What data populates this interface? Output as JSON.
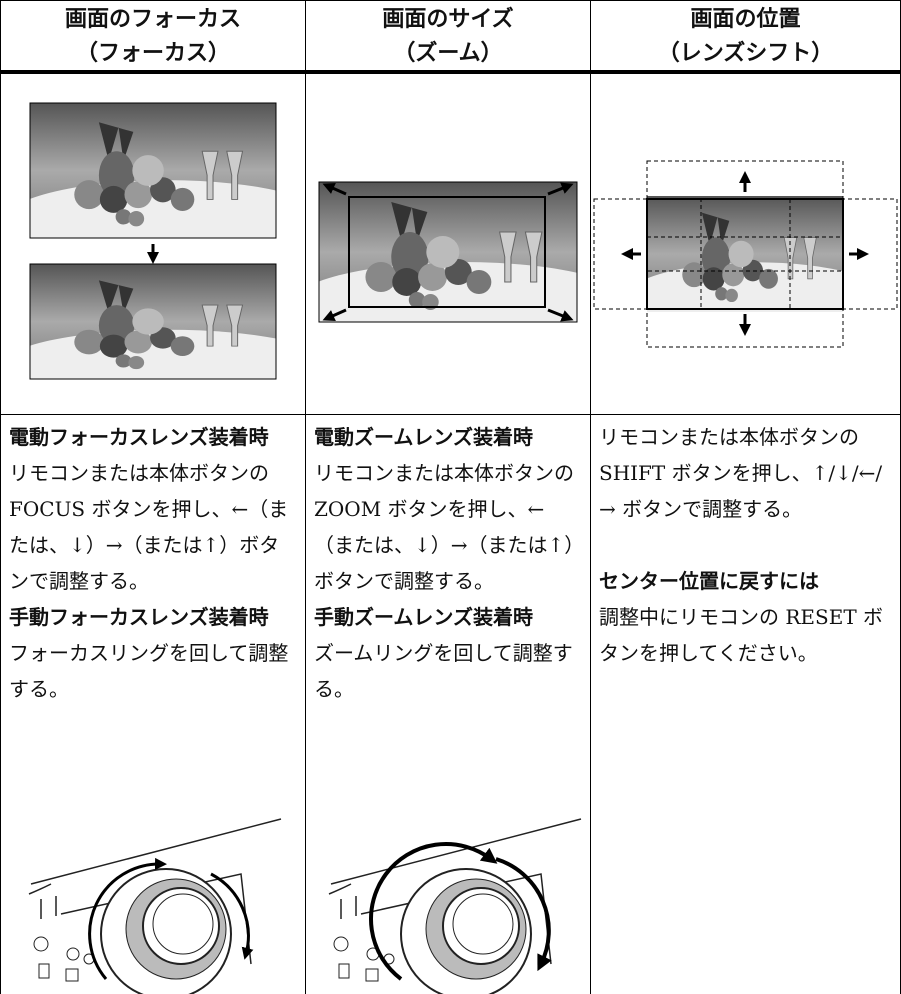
{
  "header": {
    "columns": [
      {
        "line1": "画面のフォーカス",
        "line2": "（フォーカス）"
      },
      {
        "line1": "画面のサイズ",
        "line2": "（ズーム）"
      },
      {
        "line1": "画面の位置",
        "line2": "（レンズシフト）"
      }
    ]
  },
  "body": {
    "columns": [
      {
        "paragraphs": [
          {
            "text": "電動フォーカスレンズ装着時",
            "bold": true
          },
          {
            "text": "リモコンまたは本体ボタンの FOCUS ボタンを押し、←（または、↓）→（または↑）ボタンで調整する。",
            "bold": false
          },
          {
            "text": "手動フォーカスレンズ装着時",
            "bold": true
          },
          {
            "text": "フォーカスリングを回して調整する。",
            "bold": false
          }
        ]
      },
      {
        "paragraphs": [
          {
            "text": "電動ズームレンズ装着時",
            "bold": true
          },
          {
            "text": "リモコンまたは本体ボタンの ZOOM ボタンを押し、←（または、↓）→（または↑）ボタンで調整する。",
            "bold": false
          },
          {
            "text": "手動ズームレンズ装着時",
            "bold": true
          },
          {
            "text": "ズームリングを回して調整する。",
            "bold": false
          }
        ]
      },
      {
        "paragraphs": [
          {
            "text": "リモコンまたは本体ボタンの SHIFT ボタンを押し、↑/↓/←/→ ボタンで調整する。",
            "bold": false
          },
          {
            "text": "センター位置に戻すには",
            "bold": true
          },
          {
            "text": "調整中にリモコンの RESET ボタンを押してください。",
            "bold": false
          }
        ]
      }
    ]
  }
}
